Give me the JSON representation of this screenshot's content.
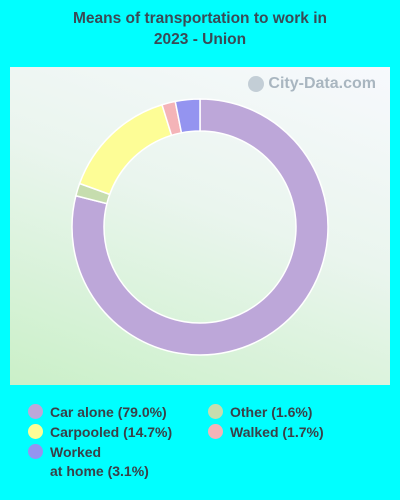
{
  "title_line1": "Means of transportation to work in",
  "title_line2": "2023 - Union",
  "watermark": "City-Data.com",
  "watermark_icon": "magnifier-icon",
  "chart_data": {
    "type": "pie",
    "variant": "donut",
    "title": "Means of transportation to work in 2023 - Union",
    "slices": [
      {
        "label": "Car alone",
        "percent": 79.0,
        "color": "#bda7d9"
      },
      {
        "label": "Other",
        "percent": 1.6,
        "color": "#c6ddae"
      },
      {
        "label": "Carpooled",
        "percent": 14.7,
        "color": "#fdfd96"
      },
      {
        "label": "Walked",
        "percent": 1.7,
        "color": "#f4b4b8"
      },
      {
        "label": "Worked at home",
        "percent": 3.1,
        "color": "#9494f0"
      }
    ],
    "legend_placement": "bottom"
  },
  "legend": [
    {
      "text": "Car alone (79.0%)",
      "color": "#bda7d9"
    },
    {
      "text": "Other (1.6%)",
      "color": "#c6ddae"
    },
    {
      "text": "Carpooled (14.7%)",
      "color": "#fdfd96"
    },
    {
      "text": "Walked (1.7%)",
      "color": "#f4b4b8"
    },
    {
      "text_line1": "Worked",
      "text_line2": "at home (3.1%)",
      "color": "#9494f0"
    }
  ]
}
